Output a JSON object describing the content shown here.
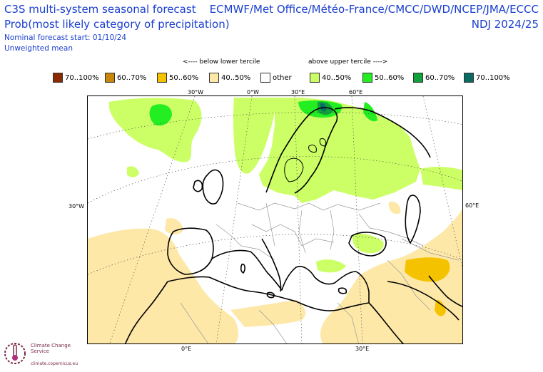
{
  "header": {
    "title_line1": "C3S multi-system seasonal forecast",
    "title_line2": "Prob(most likely category of precipitation)",
    "subtitle_line1": "Nominal forecast start: 01/10/24",
    "subtitle_line2": "Unweighted mean",
    "systems": "ECMWF/Met Office/Météo-France/CMCC/DWD/NCEP/JMA/ECCC",
    "period": "NDJ 2024/25"
  },
  "tercile_labels": {
    "below": "<---- below lower tercile",
    "above": "above upper tercile ---->"
  },
  "legend": [
    {
      "label": "70..100%",
      "color": "#8b2a00"
    },
    {
      "label": "60..70%",
      "color": "#c8860a"
    },
    {
      "label": "50..60%",
      "color": "#f5c200"
    },
    {
      "label": "40..50%",
      "color": "#fde8a8"
    },
    {
      "label": "other",
      "color": "#ffffff"
    },
    {
      "label": "40..50%",
      "color": "#ccff66"
    },
    {
      "label": "50..60%",
      "color": "#22ee22"
    },
    {
      "label": "60..70%",
      "color": "#11a13a"
    },
    {
      "label": "70..100%",
      "color": "#0a6b63"
    }
  ],
  "ticks": {
    "top": [
      "30°W",
      "0°W",
      "30°E",
      "60°E"
    ],
    "bottom": [
      "0°E",
      "30°E"
    ],
    "left": "30°W",
    "right": "60°E"
  },
  "logo": {
    "name": "Climate Change Service",
    "url": "climate.copernicus.eu"
  },
  "icons": {
    "logo": "copernicus-thermometer-icon"
  }
}
